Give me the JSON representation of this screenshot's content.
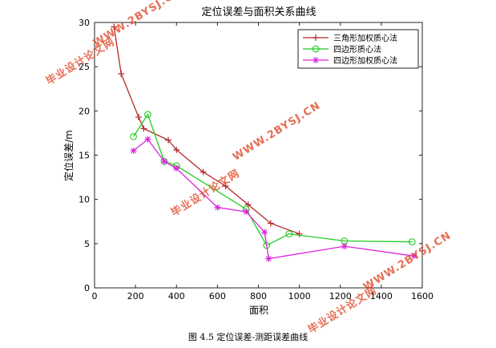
{
  "chart_data": {
    "type": "line",
    "title": "定位误差与面积关系曲线",
    "xlabel": "面积",
    "ylabel": "定位误差/m",
    "xlim": [
      0,
      1600
    ],
    "ylim": [
      0,
      30
    ],
    "x_ticks": [
      "0",
      "200",
      "400",
      "600",
      "800",
      "1000",
      "1200",
      "1400",
      "1600"
    ],
    "y_ticks": [
      "0",
      "5",
      "10",
      "15",
      "20",
      "25",
      "30"
    ],
    "grid": false,
    "legend_position": "top-right",
    "series": [
      {
        "name": "三角形加权质心法",
        "color": "#b0282a",
        "marker": "plus",
        "points": [
          [
            95,
            29.5
          ],
          [
            130,
            24.2
          ],
          [
            215,
            19.3
          ],
          [
            240,
            18.0
          ],
          [
            360,
            16.7
          ],
          [
            400,
            15.6
          ],
          [
            530,
            13.1
          ],
          [
            640,
            11.5
          ],
          [
            750,
            9.4
          ],
          [
            860,
            7.3
          ],
          [
            1000,
            6.1
          ]
        ]
      },
      {
        "name": "四边形质心法",
        "color": "#22cc22",
        "marker": "circle",
        "points": [
          [
            190,
            17.1
          ],
          [
            260,
            19.6
          ],
          [
            340,
            14.3
          ],
          [
            400,
            13.8
          ],
          [
            740,
            8.9
          ],
          [
            840,
            4.8
          ],
          [
            950,
            6.1
          ],
          [
            1220,
            5.3
          ],
          [
            1550,
            5.2
          ]
        ]
      },
      {
        "name": "四边形加权质心法",
        "color": "#dd22dd",
        "marker": "star",
        "points": [
          [
            190,
            15.5
          ],
          [
            260,
            16.8
          ],
          [
            340,
            14.3
          ],
          [
            400,
            13.5
          ],
          [
            600,
            9.1
          ],
          [
            740,
            8.6
          ],
          [
            830,
            6.3
          ],
          [
            850,
            3.3
          ],
          [
            1220,
            4.7
          ],
          [
            1560,
            3.6
          ]
        ]
      }
    ]
  },
  "caption": "图 4.5 定位误差-测距误差曲线",
  "watermarks": [
    "毕业设计论文网",
    "WWW.2BYSJ.CN"
  ]
}
